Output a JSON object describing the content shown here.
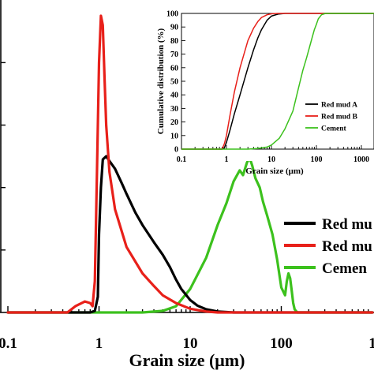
{
  "chart_data": [
    {
      "type": "line",
      "title": "",
      "xlabel": "Grain size (μm)",
      "ylabel": "",
      "xscale": "log",
      "xlim": [
        0.1,
        1000
      ],
      "ylim": [
        0,
        9.5
      ],
      "x_tick_labels": [
        "0.1",
        "1",
        "10",
        "100",
        "1"
      ],
      "legend_placement": "right",
      "grid": false,
      "series": [
        {
          "name": "Red mu",
          "color": "#000000",
          "x": [
            0.1,
            0.5,
            0.8,
            0.9,
            0.97,
            1.0,
            1.05,
            1.1,
            1.2,
            1.3,
            1.5,
            1.8,
            2.0,
            2.5,
            3.0,
            4.0,
            5.0,
            6.0,
            7.0,
            8.0,
            10.0,
            12.0,
            15.0,
            20.0,
            30.0,
            100.0,
            1000.0
          ],
          "values": [
            0,
            0,
            0,
            0.05,
            0.5,
            2.5,
            4.0,
            4.9,
            5.0,
            4.85,
            4.6,
            4.1,
            3.8,
            3.2,
            2.8,
            2.25,
            1.85,
            1.45,
            1.05,
            0.75,
            0.4,
            0.22,
            0.1,
            0.03,
            0,
            0,
            0
          ]
        },
        {
          "name": "Red mu",
          "color": "#e8201a",
          "x": [
            0.1,
            0.45,
            0.55,
            0.7,
            0.8,
            0.85,
            0.9,
            0.95,
            1.0,
            1.05,
            1.1,
            1.15,
            1.2,
            1.3,
            1.5,
            2.0,
            3.0,
            4.0,
            5.0,
            7.0,
            10.0,
            15.0,
            20.0,
            100.0,
            1000.0
          ],
          "values": [
            0,
            0,
            0.2,
            0.35,
            0.3,
            0.2,
            1.0,
            4.5,
            8.0,
            9.5,
            9.2,
            7.5,
            6.0,
            4.5,
            3.3,
            2.1,
            1.25,
            0.85,
            0.55,
            0.3,
            0.12,
            0.03,
            0,
            0,
            0
          ]
        },
        {
          "name": "Cemen",
          "color": "#3cc11d",
          "x": [
            0.1,
            3.0,
            5.0,
            7.0,
            10.0,
            15.0,
            20.0,
            25.0,
            30.0,
            35.0,
            38.0,
            42.0,
            45.0,
            48.0,
            52.0,
            58.0,
            63.0,
            70.0,
            80.0,
            90.0,
            100.0,
            110.0,
            115.0,
            120.0,
            125.0,
            130.0,
            135.0,
            140.0,
            150.0,
            160.0,
            1000.0
          ],
          "values": [
            0,
            0,
            0.05,
            0.2,
            0.75,
            1.75,
            2.8,
            3.5,
            4.2,
            4.55,
            4.4,
            4.8,
            4.95,
            4.7,
            4.3,
            4.0,
            3.55,
            3.1,
            2.5,
            1.7,
            0.8,
            0.55,
            1.0,
            1.25,
            1.1,
            0.7,
            0.3,
            0.1,
            0,
            0,
            0
          ]
        }
      ]
    },
    {
      "type": "line",
      "title": "",
      "xlabel": "Grain size (μm)",
      "ylabel": "Cumulative distribution (%)",
      "xscale": "log",
      "xlim": [
        0.1,
        2000
      ],
      "ylim": [
        0,
        100
      ],
      "x_tick_labels": [
        "0.1",
        "1",
        "10",
        "100",
        "1000"
      ],
      "y_tick_labels": [
        "0",
        "10",
        "20",
        "30",
        "40",
        "50",
        "60",
        "70",
        "80",
        "90",
        "100"
      ],
      "legend_placement": "bottom-right",
      "grid": false,
      "series": [
        {
          "name": "Red mud A",
          "color": "#000000",
          "x": [
            0.1,
            0.8,
            0.9,
            1.0,
            1.2,
            1.5,
            2.0,
            3.0,
            4.0,
            5.0,
            6.0,
            8.0,
            10.0,
            14.0,
            20.0,
            2000.0
          ],
          "values": [
            0,
            0,
            1,
            5,
            14,
            26,
            40,
            60,
            73,
            82,
            88,
            95,
            98,
            99.5,
            100,
            100
          ]
        },
        {
          "name": "Red mud B",
          "color": "#e8201a",
          "x": [
            0.1,
            0.8,
            0.9,
            1.0,
            1.2,
            1.5,
            2.0,
            3.0,
            4.0,
            5.0,
            6.0,
            8.0,
            10.0,
            14.0,
            2000.0
          ],
          "values": [
            0,
            0,
            4,
            10,
            25,
            42,
            60,
            80,
            89,
            94,
            97,
            99,
            99.7,
            100,
            100
          ]
        },
        {
          "name": "Cement",
          "color": "#3cc11d",
          "x": [
            0.1,
            3.0,
            5.0,
            8.0,
            10.0,
            15.0,
            20.0,
            30.0,
            40.0,
            50.0,
            60.0,
            70.0,
            80.0,
            90.0,
            100.0,
            110.0,
            130.0,
            160.0,
            2000.0
          ],
          "values": [
            0,
            0,
            0.5,
            1.5,
            3,
            8,
            15,
            28,
            45,
            58,
            67,
            75,
            82,
            88,
            92,
            96,
            99,
            100,
            100
          ]
        }
      ]
    }
  ]
}
